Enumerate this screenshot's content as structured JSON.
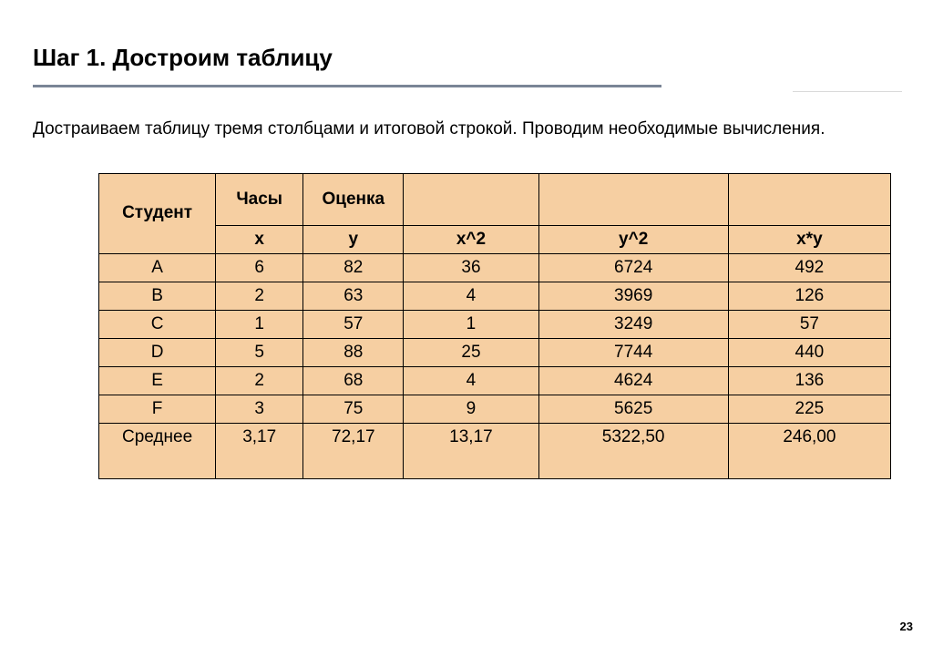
{
  "title": "Шаг 1. Достроим таблицу",
  "description": "Достраиваем таблицу тремя столбцами и итоговой строкой. Проводим необходимые вычисления.",
  "page_number": "23",
  "colors": {
    "cell_bg": "#f6cfa2",
    "border": "#000000",
    "rule": "#7a8596",
    "text": "#000000",
    "page_bg": "#ffffff"
  },
  "table": {
    "header_top": [
      "Студент",
      "Часы",
      "Оценка",
      "",
      "",
      ""
    ],
    "header_sub": [
      "x",
      "y",
      "x^2",
      "y^2",
      "x*y"
    ],
    "rows": [
      {
        "label": "A",
        "x": "6",
        "y": "82",
        "x2": "36",
        "y2": "6724",
        "xy": "492"
      },
      {
        "label": "B",
        "x": "2",
        "y": "63",
        "x2": "4",
        "y2": "3969",
        "xy": "126"
      },
      {
        "label": "C",
        "x": "1",
        "y": "57",
        "x2": "1",
        "y2": "3249",
        "xy": "57"
      },
      {
        "label": "D",
        "x": "5",
        "y": "88",
        "x2": "25",
        "y2": "7744",
        "xy": "440"
      },
      {
        "label": "E",
        "x": "2",
        "y": "68",
        "x2": "4",
        "y2": "4624",
        "xy": "136"
      },
      {
        "label": "F",
        "x": "3",
        "y": "75",
        "x2": "9",
        "y2": "5625",
        "xy": "225"
      }
    ],
    "average": {
      "label": "Среднее",
      "x": "3,17",
      "y": "72,17",
      "x2": "13,17",
      "y2": "5322,50",
      "xy": "246,00"
    }
  }
}
